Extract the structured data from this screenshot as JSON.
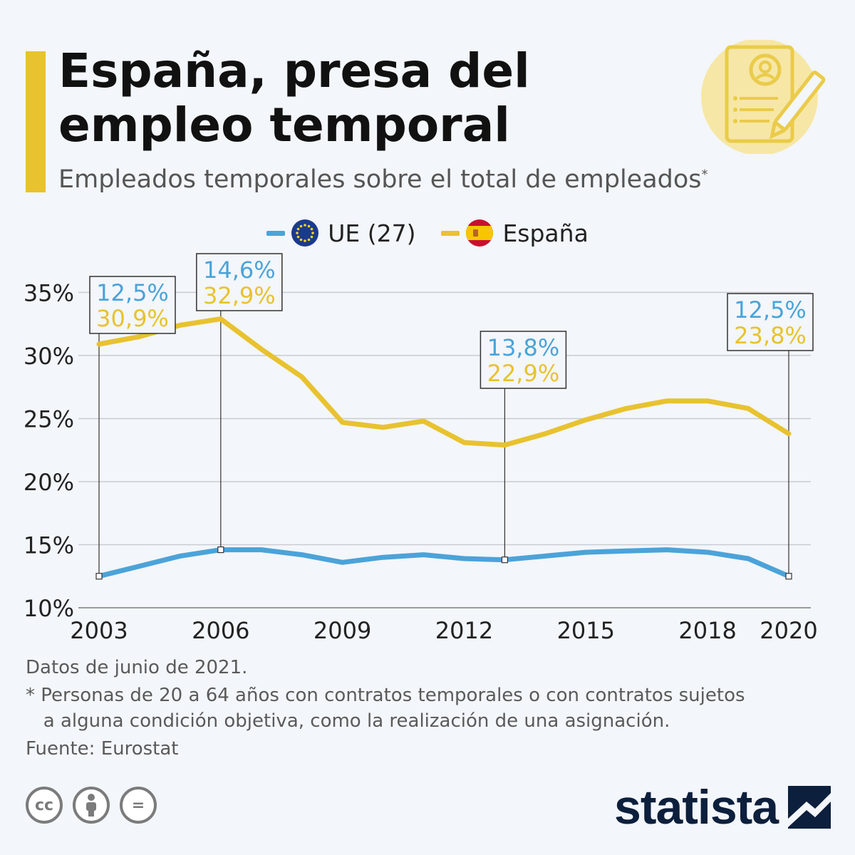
{
  "title_lines": [
    "España, presa del",
    "empleo temporal"
  ],
  "subtitle": "Empleados temporales sobre el total de empleados",
  "subtitle_mark": "*",
  "legend": [
    {
      "label": "UE (27)",
      "color": "#4ba3d9",
      "icon": "eu-flag-icon"
    },
    {
      "label": "España",
      "color": "#e8c22f",
      "icon": "spain-flag-icon"
    }
  ],
  "chart_data": {
    "type": "line",
    "x": [
      2003,
      2004,
      2005,
      2006,
      2007,
      2008,
      2009,
      2010,
      2011,
      2012,
      2013,
      2014,
      2015,
      2016,
      2017,
      2018,
      2019,
      2020
    ],
    "xticks": [
      2003,
      2006,
      2009,
      2012,
      2015,
      2018,
      2020
    ],
    "yticks": [
      10,
      15,
      20,
      25,
      30,
      35
    ],
    "ylim": [
      10,
      37
    ],
    "y_unit": "%",
    "grid": true,
    "series": [
      {
        "name": "UE (27)",
        "color": "#4ba3d9",
        "values": [
          12.5,
          13.3,
          14.1,
          14.6,
          14.6,
          14.2,
          13.6,
          14.0,
          14.2,
          13.9,
          13.8,
          14.1,
          14.4,
          14.5,
          14.6,
          14.4,
          13.9,
          12.5
        ]
      },
      {
        "name": "España",
        "color": "#e8c22f",
        "values": [
          30.9,
          31.5,
          32.4,
          32.9,
          30.5,
          28.3,
          24.7,
          24.3,
          24.8,
          23.1,
          22.9,
          23.8,
          24.9,
          25.8,
          26.4,
          26.4,
          25.8,
          23.8
        ]
      }
    ],
    "annotations": [
      {
        "year": 2003,
        "ue": "12,5%",
        "es": "30,9%"
      },
      {
        "year": 2006,
        "ue": "14,6%",
        "es": "32,9%"
      },
      {
        "year": 2013,
        "ue": "13,8%",
        "es": "22,9%"
      },
      {
        "year": 2020,
        "ue": "12,5%",
        "es": "23,8%"
      }
    ]
  },
  "footnotes": {
    "date": "Datos de junio de 2021.",
    "note_lines": [
      "* Personas de 20 a 64 años con contratos temporales o con contratos sujetos",
      "   a alguna condición objetiva, como la realización de una asignación."
    ],
    "source": "Fuente: Eurostat"
  },
  "license_icons": [
    "cc-icon",
    "attribution-icon",
    "no-derivatives-icon"
  ],
  "license_glyphs": [
    "cc",
    "",
    "="
  ],
  "brand": "statista"
}
